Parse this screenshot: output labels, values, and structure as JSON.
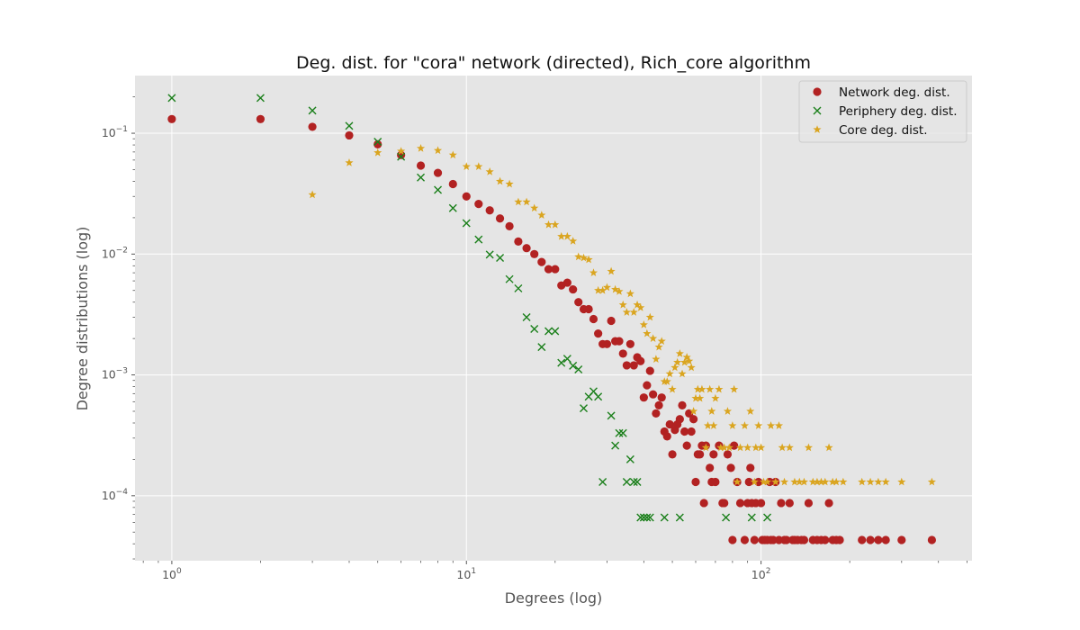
{
  "chart_data": {
    "type": "scatter",
    "title": "Deg. dist. for \"cora\" network (directed), Rich_core algorithm",
    "xlabel": "Degrees (log)",
    "ylabel": "Degree distributions (log)",
    "xscale": "log",
    "yscale": "log",
    "xlim": [
      0.75,
      520
    ],
    "ylim": [
      2.9e-05,
      0.3
    ],
    "xticks": [
      {
        "base": "10",
        "exp": "0",
        "value": 1
      },
      {
        "base": "10",
        "exp": "1",
        "value": 10
      },
      {
        "base": "10",
        "exp": "2",
        "value": 100
      }
    ],
    "yticks": [
      {
        "base": "10",
        "exp": "−4",
        "value": 0.0001
      },
      {
        "base": "10",
        "exp": "−3",
        "value": 0.001
      },
      {
        "base": "10",
        "exp": "−2",
        "value": 0.01
      },
      {
        "base": "10",
        "exp": "−1",
        "value": 0.1
      }
    ],
    "grid": true,
    "legend_position": "top-right",
    "series": [
      {
        "name": "Network deg. dist.",
        "marker": "circle",
        "color": "#b22222",
        "points": [
          [
            1,
            0.131
          ],
          [
            2,
            0.131
          ],
          [
            3,
            0.113
          ],
          [
            4,
            0.096
          ],
          [
            5,
            0.081
          ],
          [
            6,
            0.066
          ],
          [
            7,
            0.054
          ],
          [
            8,
            0.047
          ],
          [
            9,
            0.038
          ],
          [
            10,
            0.03
          ],
          [
            11,
            0.026
          ],
          [
            12,
            0.023
          ],
          [
            13,
            0.0197
          ],
          [
            14,
            0.017
          ],
          [
            15,
            0.0127
          ],
          [
            16,
            0.0112
          ],
          [
            17,
            0.01
          ],
          [
            18,
            0.0086
          ],
          [
            19,
            0.0075
          ],
          [
            20,
            0.0075
          ],
          [
            21,
            0.0055
          ],
          [
            22,
            0.0058
          ],
          [
            23,
            0.0051
          ],
          [
            24,
            0.004
          ],
          [
            25,
            0.0035
          ],
          [
            26,
            0.0035
          ],
          [
            27,
            0.0029
          ],
          [
            28,
            0.0022
          ],
          [
            29,
            0.0018
          ],
          [
            30,
            0.0018
          ],
          [
            31,
            0.0028
          ],
          [
            32,
            0.0019
          ],
          [
            33,
            0.0019
          ],
          [
            34,
            0.0015
          ],
          [
            35,
            0.0012
          ],
          [
            36,
            0.0018
          ],
          [
            37,
            0.0012
          ],
          [
            38,
            0.0014
          ],
          [
            39,
            0.0013
          ],
          [
            40,
            0.00065
          ],
          [
            41,
            0.00082
          ],
          [
            42,
            0.00108
          ],
          [
            43,
            0.00069
          ],
          [
            44,
            0.00048
          ],
          [
            45,
            0.00056
          ],
          [
            46,
            0.00065
          ],
          [
            47,
            0.00034
          ],
          [
            48,
            0.00031
          ],
          [
            49,
            0.00039
          ],
          [
            50,
            0.00022
          ],
          [
            51,
            0.00035
          ],
          [
            52,
            0.00039
          ],
          [
            53,
            0.00043
          ],
          [
            54,
            0.00056
          ],
          [
            55,
            0.00034
          ],
          [
            56,
            0.00026
          ],
          [
            57,
            0.00048
          ],
          [
            58,
            0.00034
          ],
          [
            59,
            0.00043
          ],
          [
            60,
            0.00013
          ],
          [
            61,
            0.00022
          ],
          [
            62,
            0.00022
          ],
          [
            63,
            0.00026
          ],
          [
            64,
            8.7e-05
          ],
          [
            65,
            0.00026
          ],
          [
            67,
            0.00017
          ],
          [
            68,
            0.00013
          ],
          [
            69,
            0.00022
          ],
          [
            70,
            0.00013
          ],
          [
            72,
            0.00026
          ],
          [
            74,
            8.7e-05
          ],
          [
            75,
            8.7e-05
          ],
          [
            77,
            0.00022
          ],
          [
            79,
            0.00017
          ],
          [
            80,
            4.3e-05
          ],
          [
            81,
            0.00026
          ],
          [
            83,
            0.00013
          ],
          [
            85,
            8.7e-05
          ],
          [
            88,
            4.3e-05
          ],
          [
            90,
            8.7e-05
          ],
          [
            91,
            0.00013
          ],
          [
            92,
            0.00017
          ],
          [
            93,
            8.7e-05
          ],
          [
            95,
            4.3e-05
          ],
          [
            96,
            8.7e-05
          ],
          [
            98,
            0.00013
          ],
          [
            100,
            8.7e-05
          ],
          [
            101,
            4.3e-05
          ],
          [
            103,
            4.3e-05
          ],
          [
            105,
            4.3e-05
          ],
          [
            107,
            0.00013
          ],
          [
            108,
            4.3e-05
          ],
          [
            110,
            4.3e-05
          ],
          [
            112,
            0.00013
          ],
          [
            115,
            4.3e-05
          ],
          [
            117,
            8.7e-05
          ],
          [
            120,
            4.3e-05
          ],
          [
            122,
            4.3e-05
          ],
          [
            125,
            8.7e-05
          ],
          [
            128,
            4.3e-05
          ],
          [
            130,
            4.3e-05
          ],
          [
            133,
            4.3e-05
          ],
          [
            137,
            4.3e-05
          ],
          [
            140,
            4.3e-05
          ],
          [
            145,
            8.7e-05
          ],
          [
            150,
            4.3e-05
          ],
          [
            155,
            4.3e-05
          ],
          [
            160,
            4.3e-05
          ],
          [
            165,
            4.3e-05
          ],
          [
            170,
            8.7e-05
          ],
          [
            175,
            4.3e-05
          ],
          [
            180,
            4.3e-05
          ],
          [
            185,
            4.3e-05
          ],
          [
            220,
            4.3e-05
          ],
          [
            235,
            4.3e-05
          ],
          [
            250,
            4.3e-05
          ],
          [
            265,
            4.3e-05
          ],
          [
            300,
            4.3e-05
          ],
          [
            380,
            4.3e-05
          ]
        ]
      },
      {
        "name": "Periphery deg. dist.",
        "marker": "x",
        "color": "#1a7f1a",
        "points": [
          [
            1,
            0.196
          ],
          [
            2,
            0.196
          ],
          [
            3,
            0.154
          ],
          [
            4,
            0.115
          ],
          [
            5,
            0.085
          ],
          [
            6,
            0.064
          ],
          [
            7,
            0.043
          ],
          [
            8,
            0.034
          ],
          [
            9,
            0.024
          ],
          [
            10,
            0.018
          ],
          [
            11,
            0.0132
          ],
          [
            12,
            0.0099
          ],
          [
            13,
            0.0093
          ],
          [
            14,
            0.0062
          ],
          [
            15,
            0.0052
          ],
          [
            16,
            0.003
          ],
          [
            17,
            0.0024
          ],
          [
            18,
            0.0017
          ],
          [
            19,
            0.0023
          ],
          [
            20,
            0.0023
          ],
          [
            21,
            0.00126
          ],
          [
            22,
            0.00136
          ],
          [
            23,
            0.00119
          ],
          [
            24,
            0.00111
          ],
          [
            25,
            0.00053
          ],
          [
            26,
            0.00066
          ],
          [
            27,
            0.00073
          ],
          [
            28,
            0.00066
          ],
          [
            29,
            0.00013
          ],
          [
            31,
            0.00046
          ],
          [
            32,
            0.00026
          ],
          [
            33,
            0.00033
          ],
          [
            34,
            0.00033
          ],
          [
            35,
            0.00013
          ],
          [
            36,
            0.0002
          ],
          [
            37,
            0.00013
          ],
          [
            38,
            0.00013
          ],
          [
            39,
            6.6e-05
          ],
          [
            40,
            6.6e-05
          ],
          [
            41,
            6.6e-05
          ],
          [
            42,
            6.6e-05
          ],
          [
            47,
            6.6e-05
          ],
          [
            53,
            6.6e-05
          ],
          [
            76,
            6.6e-05
          ],
          [
            93,
            6.6e-05
          ],
          [
            105,
            6.6e-05
          ]
        ]
      },
      {
        "name": "Core deg. dist.",
        "marker": "star",
        "color": "#daa520",
        "points": [
          [
            3,
            0.031
          ],
          [
            4,
            0.057
          ],
          [
            5,
            0.069
          ],
          [
            6,
            0.071
          ],
          [
            7,
            0.075
          ],
          [
            8,
            0.072
          ],
          [
            9,
            0.066
          ],
          [
            10,
            0.053
          ],
          [
            11,
            0.053
          ],
          [
            12,
            0.048
          ],
          [
            13,
            0.04
          ],
          [
            14,
            0.038
          ],
          [
            15,
            0.027
          ],
          [
            16,
            0.027
          ],
          [
            17,
            0.024
          ],
          [
            18,
            0.021
          ],
          [
            19,
            0.0175
          ],
          [
            20,
            0.0175
          ],
          [
            21,
            0.014
          ],
          [
            22,
            0.014
          ],
          [
            23,
            0.0128
          ],
          [
            24,
            0.0095
          ],
          [
            25,
            0.0093
          ],
          [
            26,
            0.009
          ],
          [
            27,
            0.007
          ],
          [
            28,
            0.005
          ],
          [
            29,
            0.005
          ],
          [
            30,
            0.0053
          ],
          [
            31,
            0.0072
          ],
          [
            32,
            0.0051
          ],
          [
            33,
            0.0049
          ],
          [
            34,
            0.0038
          ],
          [
            35,
            0.0033
          ],
          [
            36,
            0.0047
          ],
          [
            37,
            0.0033
          ],
          [
            38,
            0.0038
          ],
          [
            39,
            0.0036
          ],
          [
            40,
            0.0026
          ],
          [
            41,
            0.0022
          ],
          [
            42,
            0.003
          ],
          [
            43,
            0.002
          ],
          [
            44,
            0.00135
          ],
          [
            45,
            0.0017
          ],
          [
            46,
            0.0019
          ],
          [
            47,
            0.00088
          ],
          [
            48,
            0.00088
          ],
          [
            49,
            0.00102
          ],
          [
            50,
            0.00076
          ],
          [
            51,
            0.00115
          ],
          [
            52,
            0.00127
          ],
          [
            53,
            0.0015
          ],
          [
            54,
            0.00102
          ],
          [
            55,
            0.00127
          ],
          [
            56,
            0.0014
          ],
          [
            57,
            0.0013
          ],
          [
            58,
            0.00115
          ],
          [
            59,
            0.0005
          ],
          [
            60,
            0.00064
          ],
          [
            61,
            0.00076
          ],
          [
            62,
            0.00064
          ],
          [
            63,
            0.00076
          ],
          [
            65,
            0.00025
          ],
          [
            66,
            0.00038
          ],
          [
            67,
            0.00076
          ],
          [
            68,
            0.0005
          ],
          [
            69,
            0.00038
          ],
          [
            70,
            0.00064
          ],
          [
            72,
            0.00076
          ],
          [
            73,
            0.00025
          ],
          [
            75,
            0.00025
          ],
          [
            77,
            0.0005
          ],
          [
            78,
            0.00025
          ],
          [
            80,
            0.00038
          ],
          [
            81,
            0.00076
          ],
          [
            83,
            0.00013
          ],
          [
            85,
            0.00025
          ],
          [
            88,
            0.00038
          ],
          [
            90,
            0.00025
          ],
          [
            92,
            0.0005
          ],
          [
            95,
            0.00013
          ],
          [
            96,
            0.00025
          ],
          [
            98,
            0.00038
          ],
          [
            100,
            0.00025
          ],
          [
            102,
            0.00013
          ],
          [
            105,
            0.00013
          ],
          [
            108,
            0.00038
          ],
          [
            112,
            0.00013
          ],
          [
            115,
            0.00038
          ],
          [
            118,
            0.00025
          ],
          [
            120,
            0.00013
          ],
          [
            125,
            0.00025
          ],
          [
            130,
            0.00013
          ],
          [
            135,
            0.00013
          ],
          [
            140,
            0.00013
          ],
          [
            145,
            0.00025
          ],
          [
            150,
            0.00013
          ],
          [
            155,
            0.00013
          ],
          [
            160,
            0.00013
          ],
          [
            165,
            0.00013
          ],
          [
            170,
            0.00025
          ],
          [
            175,
            0.00013
          ],
          [
            180,
            0.00013
          ],
          [
            190,
            0.00013
          ],
          [
            220,
            0.00013
          ],
          [
            235,
            0.00013
          ],
          [
            250,
            0.00013
          ],
          [
            265,
            0.00013
          ],
          [
            300,
            0.00013
          ],
          [
            380,
            0.00013
          ]
        ]
      }
    ]
  }
}
